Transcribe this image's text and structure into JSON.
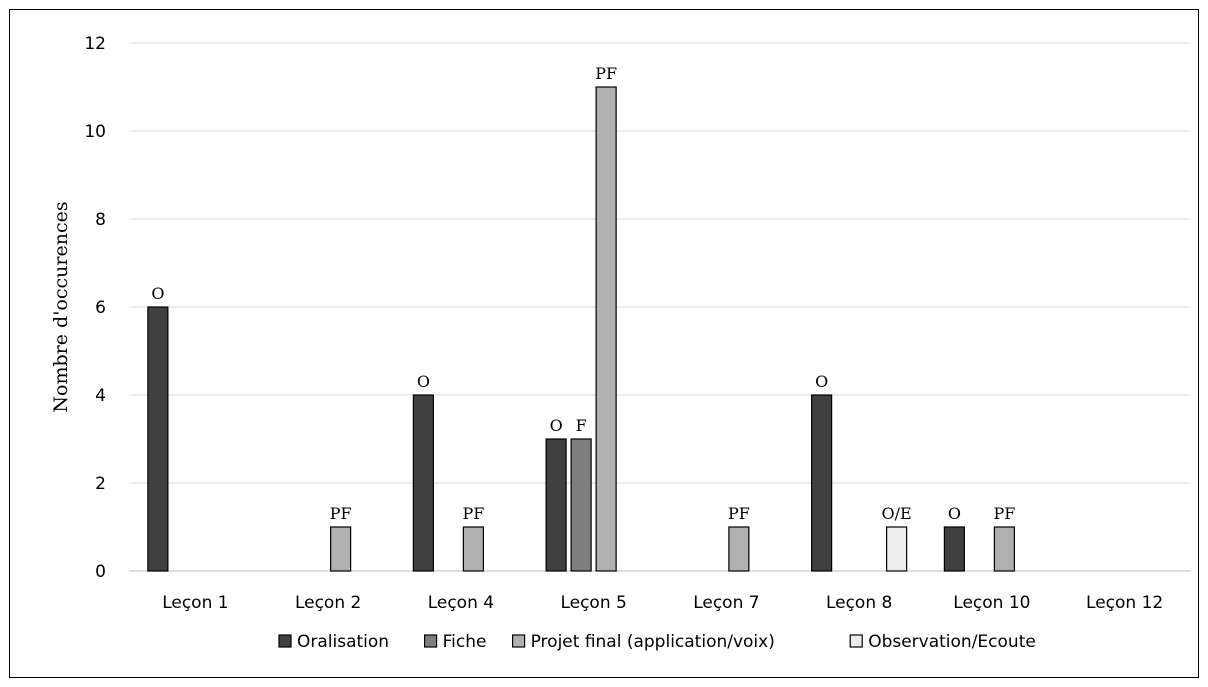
{
  "chart_data": {
    "type": "bar",
    "title": "",
    "xlabel": "",
    "ylabel": "Nombre d'occurences",
    "ylim": [
      0,
      12
    ],
    "yticks": [
      0,
      2,
      4,
      6,
      8,
      10,
      12
    ],
    "grid": true,
    "legend_position": "bottom",
    "categories": [
      "Leçon 1",
      "Leçon 2",
      "Leçon 4",
      "Leçon 5",
      "Leçon 7",
      "Leçon 8",
      "Leçon 10",
      "Leçon 12"
    ],
    "series": [
      {
        "name": "Oralisation",
        "color": "#404040",
        "values": [
          6,
          0,
          4,
          3,
          0,
          4,
          1,
          0
        ],
        "labels": [
          "O",
          "",
          "O",
          "O",
          "",
          "O",
          "O",
          ""
        ]
      },
      {
        "name": "Fiche",
        "color": "#7f7f7f",
        "values": [
          0,
          0,
          0,
          3,
          0,
          0,
          0,
          0
        ],
        "labels": [
          "",
          "",
          "",
          "F",
          "",
          "",
          "",
          ""
        ]
      },
      {
        "name": "Projet final (application/voix)",
        "color": "#b0b0b0",
        "values": [
          0,
          1,
          1,
          11,
          1,
          0,
          1,
          0
        ],
        "labels": [
          "",
          "PF",
          "PF",
          "PF",
          "PF",
          "",
          "PF",
          ""
        ]
      },
      {
        "name": "Observation/Ecoute",
        "color": "#ededed",
        "values": [
          0,
          0,
          0,
          0,
          0,
          1,
          0,
          0
        ],
        "labels": [
          "",
          "",
          "",
          "",
          "",
          "O/E",
          "",
          ""
        ]
      }
    ]
  }
}
